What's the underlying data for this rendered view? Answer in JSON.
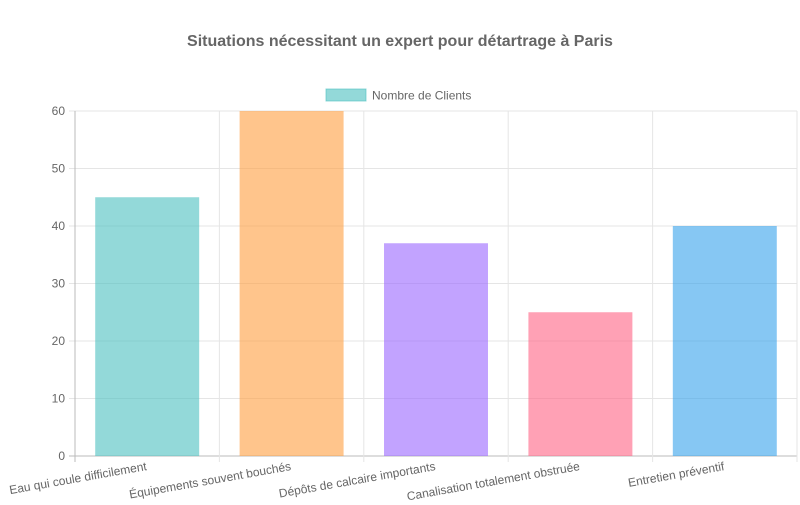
{
  "chart_data": {
    "type": "bar",
    "title": "Situations nécessitant un expert pour détartrage à Paris",
    "legend": {
      "label": "Nombre de Clients",
      "position": "top",
      "color": "#4bc0c0"
    },
    "categories": [
      "Eau qui coule difficilement",
      "Équipements souvent bouchés",
      "Dépôts de calcaire importants",
      "Canalisation totalement obstruée",
      "Entretien préventif"
    ],
    "values": [
      45,
      60,
      37,
      25,
      40
    ],
    "colors": [
      "#4bc0c0",
      "#ff9f40",
      "#9966ff",
      "#ff6384",
      "#36a2eb"
    ],
    "ylim": [
      0,
      60
    ],
    "yticks": [
      0,
      10,
      20,
      30,
      40,
      50,
      60
    ],
    "xlabel": "",
    "ylabel": "",
    "grid": true
  }
}
